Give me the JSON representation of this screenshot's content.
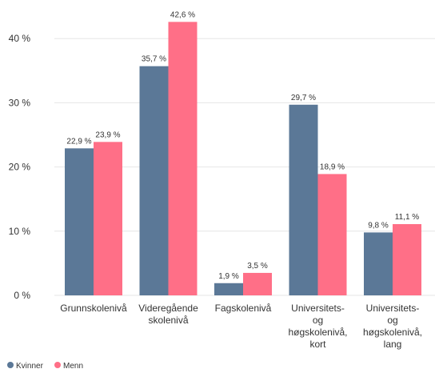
{
  "chart_data": {
    "type": "bar",
    "title": "",
    "xlabel": "",
    "ylabel": "",
    "ylim": [
      0,
      45
    ],
    "yticks": [
      0,
      10,
      20,
      30,
      40
    ],
    "ytick_labels": [
      "0 %",
      "10 %",
      "20 %",
      "30 %",
      "40 %"
    ],
    "grid": true,
    "legend_position": "bottom-left",
    "categories": [
      [
        "Grunnskolenivå"
      ],
      [
        "Videregående",
        "skolenivå"
      ],
      [
        "Fagskolenivå"
      ],
      [
        "Universitets-",
        "og",
        "høgskolenivå,",
        "kort"
      ],
      [
        "Universitets-",
        "og",
        "høgskolenivå,",
        "lang"
      ]
    ],
    "series": [
      {
        "name": "Kvinner",
        "color": "#5b7897",
        "values": [
          22.9,
          35.7,
          1.9,
          29.7,
          9.8
        ],
        "labels": [
          "22,9 %",
          "35,7 %",
          "1,9 %",
          "29,7 %",
          "9,8 %"
        ]
      },
      {
        "name": "Menn",
        "color": "#ff6f87",
        "values": [
          23.9,
          42.6,
          3.5,
          18.9,
          11.1
        ],
        "labels": [
          "23,9 %",
          "42,6 %",
          "3,5 %",
          "18,9 %",
          "11,1 %"
        ]
      }
    ]
  }
}
